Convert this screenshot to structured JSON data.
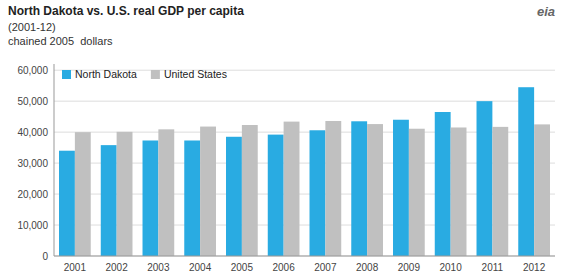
{
  "chart_data": {
    "type": "bar",
    "title": "North Dakota vs. U.S. real GDP per capita",
    "subtitle": [
      "(2001-12)",
      "chained 2005  dollars"
    ],
    "annotations": [
      "eia"
    ],
    "categories": [
      "2001",
      "2002",
      "2003",
      "2004",
      "2005",
      "2006",
      "2007",
      "2008",
      "2009",
      "2010",
      "2011",
      "2012"
    ],
    "series": [
      {
        "name": "North Dakota",
        "color": "#29ABE2",
        "values": [
          34000,
          35800,
          37300,
          37300,
          38500,
          39200,
          40600,
          43500,
          44000,
          46500,
          50000,
          54500
        ]
      },
      {
        "name": "United States",
        "color": "#C0C0C0",
        "values": [
          40000,
          40100,
          40900,
          41800,
          42300,
          43400,
          43600,
          42600,
          41100,
          41500,
          41700,
          42500
        ]
      }
    ],
    "ylim": [
      0,
      62000
    ],
    "yticks": [
      0,
      {
        "value": 10000,
        "label": "10,000"
      },
      {
        "value": 20000,
        "label": "20,000"
      },
      {
        "value": 30000,
        "label": "30,000"
      },
      {
        "value": 40000,
        "label": "40,000"
      },
      {
        "value": 50000,
        "label": "50,000"
      },
      {
        "value": 60000,
        "label": "60,000"
      }
    ],
    "grid": true,
    "legend": "upper left"
  }
}
